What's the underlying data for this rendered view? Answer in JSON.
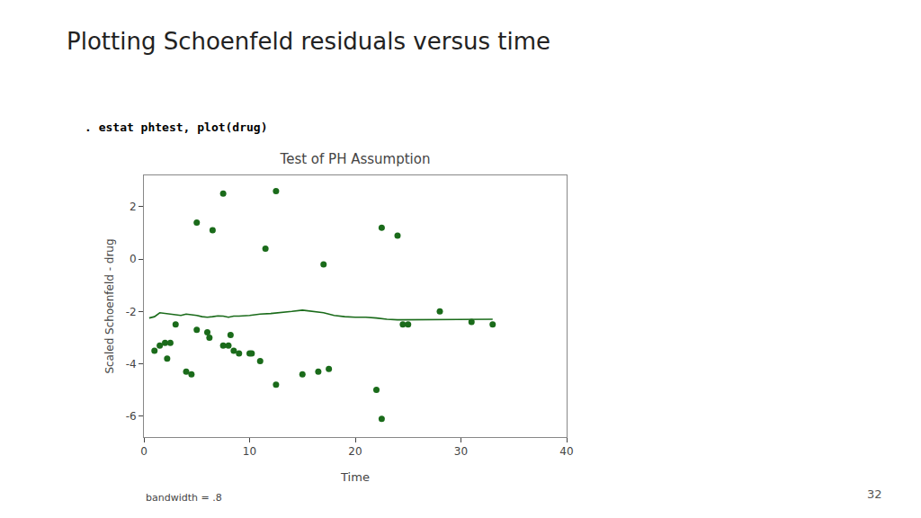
{
  "chart_data": {
    "type": "scatter",
    "title": "Test of PH Assumption",
    "xlabel": "Time",
    "ylabel": "Scaled Schoenfeld - drug",
    "annotations": [
      "Plotting Schoenfeld residuals versus time",
      ". estat phtest, plot(drug)",
      "bandwidth = .8",
      "32"
    ],
    "xlim": [
      0,
      40
    ],
    "ylim": [
      -6.8,
      3.2
    ],
    "xticks": [
      0,
      10,
      20,
      30,
      40
    ],
    "yticks": [
      -6,
      -4,
      -2,
      0,
      2
    ],
    "grid": false,
    "series": [
      {
        "type": "scatter",
        "color": "#1a6b1a",
        "x": [
          1.0,
          1.5,
          2.0,
          2.2,
          2.5,
          3.0,
          4.0,
          4.5,
          5.0,
          6.0,
          6.2,
          7.5,
          8.0,
          8.2,
          8.5,
          9.0,
          10.0,
          10.2,
          11.0,
          12.5,
          15.0,
          16.5,
          17.5,
          22.0,
          22.5,
          24.5,
          25.0,
          28.0,
          31.0,
          33.0
        ],
        "values": [
          -3.5,
          -3.3,
          -3.2,
          -3.8,
          -3.2,
          -2.5,
          -4.3,
          -4.4,
          -2.7,
          -2.8,
          -3.0,
          -3.3,
          -3.3,
          -2.9,
          -3.5,
          -3.6,
          -3.6,
          -3.6,
          -3.9,
          -4.8,
          -4.4,
          -4.3,
          -4.2,
          -5.0,
          -6.1,
          -2.5,
          -2.5,
          -2.0,
          -2.4,
          -2.5
        ]
      },
      {
        "type": "scatter",
        "color": "#1a6b1a",
        "x": [
          5.0,
          6.5,
          7.5,
          12.5,
          22.5,
          24.0
        ],
        "values": [
          1.4,
          1.1,
          2.5,
          2.6,
          1.2,
          0.9
        ]
      },
      {
        "type": "scatter",
        "color": "#1a6b1a",
        "x": [
          11.5,
          17.0
        ],
        "values": [
          0.4,
          -0.2
        ]
      },
      {
        "type": "line",
        "color": "#1a6b1a",
        "x": [
          0.5,
          1.0,
          1.5,
          2.0,
          2.5,
          3.0,
          3.5,
          4.0,
          4.5,
          5.0,
          5.5,
          6.0,
          6.5,
          7.0,
          7.5,
          8.0,
          8.5,
          9.0,
          10.0,
          11.0,
          12.0,
          13.0,
          14.0,
          15.0,
          16.0,
          17.0,
          18.0,
          19.0,
          20.0,
          21.0,
          22.0,
          23.0,
          24.0,
          25.0,
          26.0,
          27.0,
          28.0,
          29.0,
          30.0,
          31.0,
          32.0,
          33.0
        ],
        "values": [
          -2.25,
          -2.2,
          -2.05,
          -2.08,
          -2.1,
          -2.12,
          -2.15,
          -2.1,
          -2.12,
          -2.15,
          -2.2,
          -2.22,
          -2.2,
          -2.17,
          -2.18,
          -2.22,
          -2.18,
          -2.18,
          -2.15,
          -2.1,
          -2.08,
          -2.05,
          -2.0,
          -1.95,
          -2.0,
          -2.05,
          -2.15,
          -2.2,
          -2.22,
          -2.22,
          -2.25,
          -2.3,
          -2.32,
          -2.32,
          -2.3,
          -2.3,
          -2.3,
          -2.3,
          -2.3,
          -2.3,
          -2.3,
          -2.3
        ]
      }
    ]
  }
}
